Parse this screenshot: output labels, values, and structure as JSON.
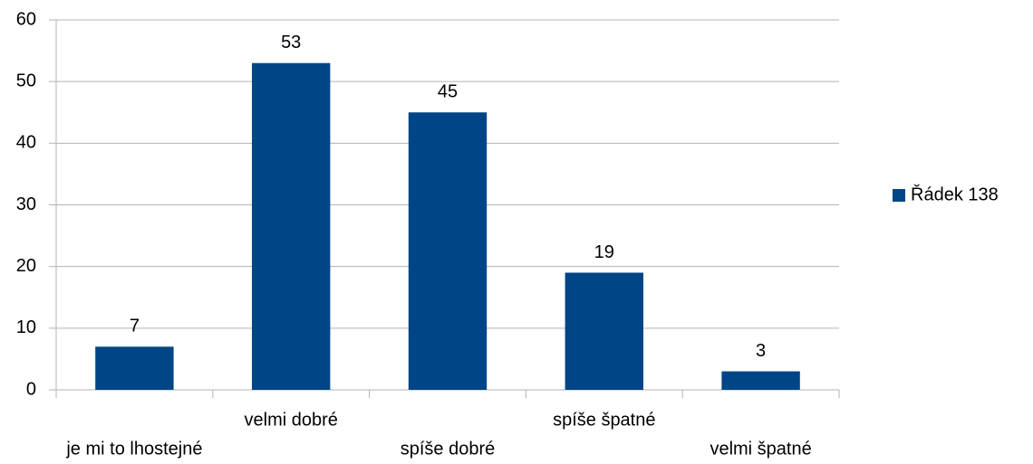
{
  "chart_data": {
    "type": "bar",
    "categories": [
      "je mi to lhostejné",
      "velmi dobré",
      "spíše dobré",
      "spíše špatné",
      "velmi špatné"
    ],
    "series": [
      {
        "name": "Řádek 138",
        "color": "#004586",
        "values": [
          7,
          53,
          45,
          19,
          3
        ]
      }
    ],
    "ylim": [
      0,
      60
    ],
    "yticks": [
      0,
      10,
      20,
      30,
      40,
      50,
      60
    ],
    "grid": true,
    "legend": "right",
    "data_labels": true
  }
}
